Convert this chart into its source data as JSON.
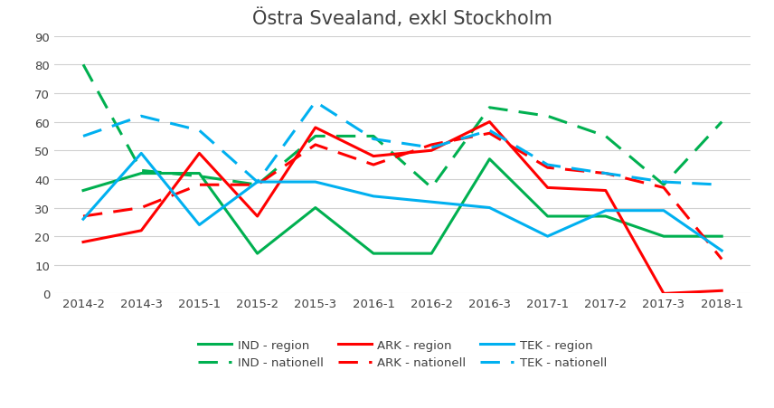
{
  "title": "Östra Svealand, exkl Stockholm",
  "x_labels": [
    "2014-2",
    "2014-3",
    "2015-1",
    "2015-2",
    "2015-3",
    "2016-1",
    "2016-2",
    "2016-3",
    "2017-1",
    "2017-2",
    "2017-3",
    "2018-1"
  ],
  "IND_region": [
    36,
    42,
    42,
    14,
    30,
    14,
    14,
    47,
    27,
    27,
    20,
    20
  ],
  "IND_nationell": [
    80,
    43,
    41,
    38,
    55,
    55,
    37,
    65,
    62,
    55,
    38,
    60
  ],
  "ARK_region": [
    18,
    22,
    49,
    27,
    58,
    48,
    50,
    60,
    37,
    36,
    0,
    1
  ],
  "ARK_nationell": [
    27,
    30,
    38,
    38,
    52,
    45,
    52,
    56,
    44,
    42,
    37,
    12
  ],
  "TEK_region": [
    26,
    49,
    24,
    39,
    39,
    34,
    32,
    30,
    20,
    29,
    29,
    15
  ],
  "TEK_nationell": [
    55,
    62,
    57,
    39,
    67,
    54,
    51,
    57,
    45,
    42,
    39,
    38
  ],
  "ylim": [
    0,
    90
  ],
  "yticks": [
    0,
    10,
    20,
    30,
    40,
    50,
    60,
    70,
    80,
    90
  ],
  "color_green": "#00b050",
  "color_red": "#ff0000",
  "color_blue": "#00b0f0",
  "background": "#ffffff",
  "grid_color": "#d0d0d0",
  "title_color": "#404040",
  "tick_color": "#404040",
  "lw": 2.2,
  "legend_row1": [
    "IND - region",
    "IND - nationell",
    "ARK - region"
  ],
  "legend_row2": [
    "ARK - nationell",
    "TEK - region",
    "TEK - nationell"
  ]
}
